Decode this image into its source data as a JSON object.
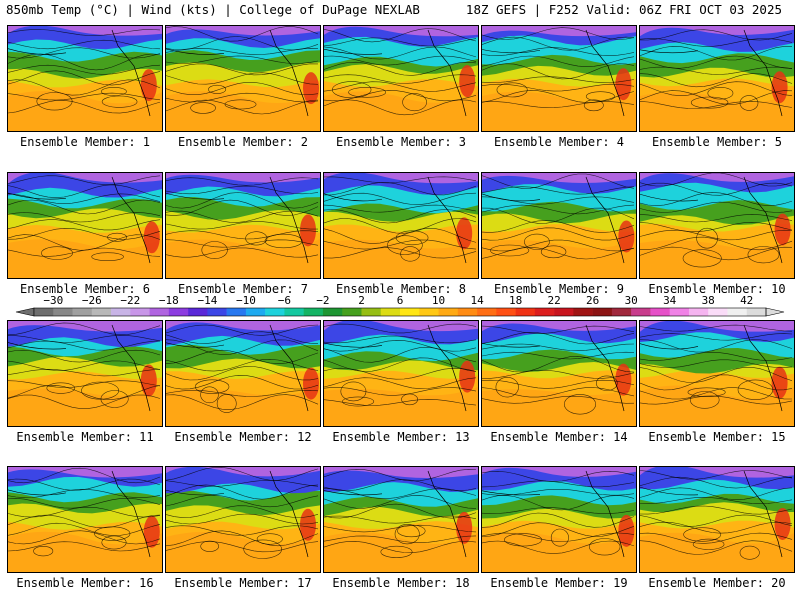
{
  "header": {
    "title_left": "850mb Temp (°C) | Wind (kts) | College of DuPage NEXLAB",
    "title_right": "18Z GEFS | F252 Valid: 06Z FRI OCT 03 2025"
  },
  "panels": [
    {
      "label": "Ensemble Member: 1"
    },
    {
      "label": "Ensemble Member: 2"
    },
    {
      "label": "Ensemble Member: 3"
    },
    {
      "label": "Ensemble Member: 4"
    },
    {
      "label": "Ensemble Member: 5"
    },
    {
      "label": "Ensemble Member: 6"
    },
    {
      "label": "Ensemble Member: 7"
    },
    {
      "label": "Ensemble Member: 8"
    },
    {
      "label": "Ensemble Member: 9"
    },
    {
      "label": "Ensemble Member: 10"
    },
    {
      "label": "Ensemble Member: 11"
    },
    {
      "label": "Ensemble Member: 12"
    },
    {
      "label": "Ensemble Member: 13"
    },
    {
      "label": "Ensemble Member: 14"
    },
    {
      "label": "Ensemble Member: 15"
    },
    {
      "label": "Ensemble Member: 16"
    },
    {
      "label": "Ensemble Member: 17"
    },
    {
      "label": "Ensemble Member: 18"
    },
    {
      "label": "Ensemble Member: 19"
    },
    {
      "label": "Ensemble Member: 20"
    }
  ],
  "colorbar": {
    "labels": [
      "−30",
      "−26",
      "−22",
      "−18",
      "−14",
      "−10",
      "−6",
      "−2",
      "2",
      "6",
      "10",
      "14",
      "18",
      "22",
      "26",
      "30",
      "34",
      "38",
      "42"
    ],
    "min": -32,
    "max": 44,
    "colors": [
      "#6e6e6e",
      "#888888",
      "#a0a0a0",
      "#b8b8b8",
      "#c8b4e6",
      "#c896e8",
      "#b064e0",
      "#8c3ce0",
      "#5a28d8",
      "#3c46e6",
      "#2878f0",
      "#1eaaf0",
      "#1ed2dc",
      "#14c8a0",
      "#14b464",
      "#1e9632",
      "#46a01e",
      "#96be14",
      "#dcdc14",
      "#ffe614",
      "#ffc814",
      "#ffaa14",
      "#ff8c14",
      "#ff6e14",
      "#ff5014",
      "#f03214",
      "#dc1e1e",
      "#c8141e",
      "#a01414",
      "#8c1414",
      "#a0283c",
      "#c83c8c",
      "#e650c8",
      "#f082e6",
      "#f5b4f0",
      "#fadcf8",
      "#f0f0f0",
      "#dcdcdc"
    ]
  }
}
